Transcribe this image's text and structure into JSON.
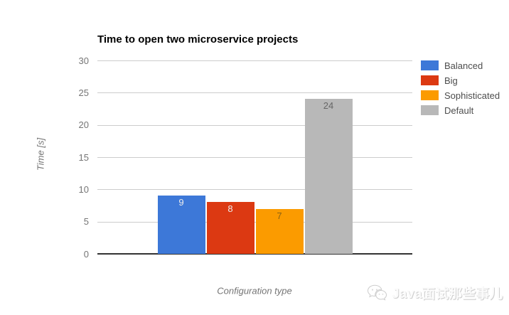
{
  "chart_data": {
    "type": "bar",
    "title": "Time to open two microservice projects",
    "xlabel": "Configuration type",
    "ylabel": "Time [s]",
    "ylim": [
      0,
      30
    ],
    "yticks": [
      0,
      5,
      10,
      15,
      20,
      25,
      30
    ],
    "grid": true,
    "legend_position": "right",
    "categories": [
      "Configuration"
    ],
    "series": [
      {
        "name": "Balanced",
        "value": 9,
        "color": "#3d78d8",
        "label_color": "#ececec"
      },
      {
        "name": "Big",
        "value": 8,
        "color": "#dc3912",
        "label_color": "#ececec"
      },
      {
        "name": "Sophisticated",
        "value": 7,
        "color": "#fb9b00",
        "label_color": "#8a6214"
      },
      {
        "name": "Default",
        "value": 24,
        "color": "#b8b8b8",
        "label_color": "#666666"
      }
    ],
    "annotations": [
      "9",
      "8",
      "7",
      "24"
    ],
    "colors": {
      "grid": "#cccccc",
      "baseline": "#333333",
      "tick_label": "#757575",
      "axis_title": "#757575",
      "legend_label": "#4d4d4d",
      "title": "#000000"
    }
  },
  "watermark": {
    "icon": "wechat-icon",
    "text": "Java面试那些事儿"
  }
}
